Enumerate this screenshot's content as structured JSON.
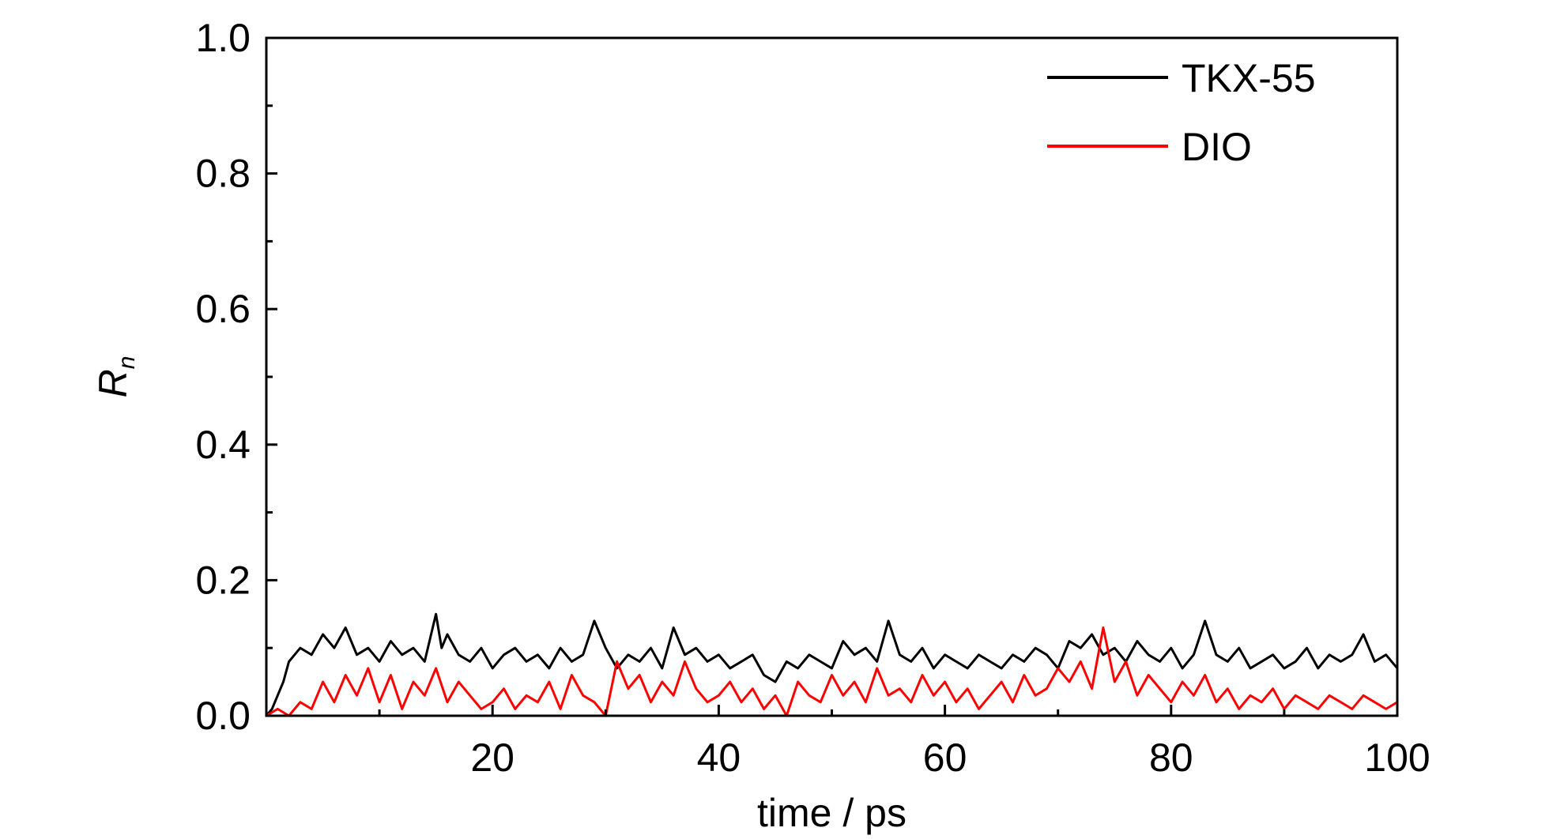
{
  "chart_data": {
    "type": "line",
    "xlabel": "time / ps",
    "ylabel_main": "R",
    "ylabel_sub": "n",
    "xlim": [
      0,
      100
    ],
    "ylim": [
      0,
      1.0
    ],
    "x_ticks": [
      20,
      40,
      60,
      80,
      100
    ],
    "x_tick_labels": [
      "20",
      "40",
      "60",
      "80",
      "100"
    ],
    "y_ticks": [
      0.0,
      0.2,
      0.4,
      0.6,
      0.8,
      1.0
    ],
    "y_tick_labels": [
      "0.0",
      "0.2",
      "0.4",
      "0.6",
      "0.8",
      "1.0"
    ],
    "legend_position": "top-right",
    "grid": false,
    "series": [
      {
        "name": "TKX-55",
        "color": "#000000",
        "x": [
          0,
          0.5,
          1,
          1.5,
          2,
          3,
          4,
          5,
          6,
          7,
          8,
          9,
          10,
          11,
          12,
          13,
          14,
          15,
          15.5,
          16,
          17,
          18,
          19,
          20,
          21,
          22,
          23,
          24,
          25,
          26,
          27,
          28,
          29,
          30,
          31,
          32,
          33,
          34,
          35,
          36,
          37,
          38,
          39,
          40,
          41,
          42,
          43,
          44,
          45,
          46,
          47,
          48,
          49,
          50,
          51,
          52,
          53,
          54,
          55,
          56,
          57,
          58,
          59,
          60,
          61,
          62,
          63,
          64,
          65,
          66,
          67,
          68,
          69,
          70,
          71,
          72,
          73,
          74,
          75,
          76,
          77,
          78,
          79,
          80,
          81,
          82,
          83,
          84,
          85,
          86,
          87,
          88,
          89,
          90,
          91,
          92,
          93,
          94,
          95,
          96,
          97,
          98,
          99,
          100
        ],
        "y": [
          0.0,
          0.01,
          0.03,
          0.05,
          0.08,
          0.1,
          0.09,
          0.12,
          0.1,
          0.13,
          0.09,
          0.1,
          0.08,
          0.11,
          0.09,
          0.1,
          0.08,
          0.15,
          0.1,
          0.12,
          0.09,
          0.08,
          0.1,
          0.07,
          0.09,
          0.1,
          0.08,
          0.09,
          0.07,
          0.1,
          0.08,
          0.09,
          0.14,
          0.1,
          0.07,
          0.09,
          0.08,
          0.1,
          0.07,
          0.13,
          0.09,
          0.1,
          0.08,
          0.09,
          0.07,
          0.08,
          0.09,
          0.06,
          0.05,
          0.08,
          0.07,
          0.09,
          0.08,
          0.07,
          0.11,
          0.09,
          0.1,
          0.08,
          0.14,
          0.09,
          0.08,
          0.1,
          0.07,
          0.09,
          0.08,
          0.07,
          0.09,
          0.08,
          0.07,
          0.09,
          0.08,
          0.1,
          0.09,
          0.07,
          0.11,
          0.1,
          0.12,
          0.09,
          0.1,
          0.08,
          0.11,
          0.09,
          0.08,
          0.1,
          0.07,
          0.09,
          0.14,
          0.09,
          0.08,
          0.1,
          0.07,
          0.08,
          0.09,
          0.07,
          0.08,
          0.1,
          0.07,
          0.09,
          0.08,
          0.09,
          0.12,
          0.08,
          0.09,
          0.07
        ]
      },
      {
        "name": "DIO",
        "color": "#ff0000",
        "x": [
          0,
          1,
          2,
          3,
          4,
          5,
          6,
          7,
          8,
          9,
          10,
          11,
          12,
          13,
          14,
          15,
          16,
          17,
          18,
          19,
          20,
          21,
          22,
          23,
          24,
          25,
          26,
          27,
          28,
          29,
          30,
          31,
          32,
          33,
          34,
          35,
          36,
          37,
          38,
          39,
          40,
          41,
          42,
          43,
          44,
          45,
          46,
          47,
          48,
          49,
          50,
          51,
          52,
          53,
          54,
          55,
          56,
          57,
          58,
          59,
          60,
          61,
          62,
          63,
          64,
          65,
          66,
          67,
          68,
          69,
          70,
          71,
          72,
          73,
          74,
          75,
          76,
          77,
          78,
          79,
          80,
          81,
          82,
          83,
          84,
          85,
          86,
          87,
          88,
          89,
          90,
          91,
          92,
          93,
          94,
          95,
          96,
          97,
          98,
          99,
          100
        ],
        "y": [
          0.0,
          0.01,
          0.0,
          0.02,
          0.01,
          0.05,
          0.02,
          0.06,
          0.03,
          0.07,
          0.02,
          0.06,
          0.01,
          0.05,
          0.03,
          0.07,
          0.02,
          0.05,
          0.03,
          0.01,
          0.02,
          0.04,
          0.01,
          0.03,
          0.02,
          0.05,
          0.01,
          0.06,
          0.03,
          0.02,
          0.0,
          0.08,
          0.04,
          0.06,
          0.02,
          0.05,
          0.03,
          0.08,
          0.04,
          0.02,
          0.03,
          0.05,
          0.02,
          0.04,
          0.01,
          0.03,
          0.0,
          0.05,
          0.03,
          0.02,
          0.06,
          0.03,
          0.05,
          0.02,
          0.07,
          0.03,
          0.04,
          0.02,
          0.06,
          0.03,
          0.05,
          0.02,
          0.04,
          0.01,
          0.03,
          0.05,
          0.02,
          0.06,
          0.03,
          0.04,
          0.07,
          0.05,
          0.08,
          0.04,
          0.13,
          0.05,
          0.08,
          0.03,
          0.06,
          0.04,
          0.02,
          0.05,
          0.03,
          0.06,
          0.02,
          0.04,
          0.01,
          0.03,
          0.02,
          0.04,
          0.01,
          0.03,
          0.02,
          0.01,
          0.03,
          0.02,
          0.01,
          0.03,
          0.02,
          0.01,
          0.02
        ]
      }
    ]
  }
}
